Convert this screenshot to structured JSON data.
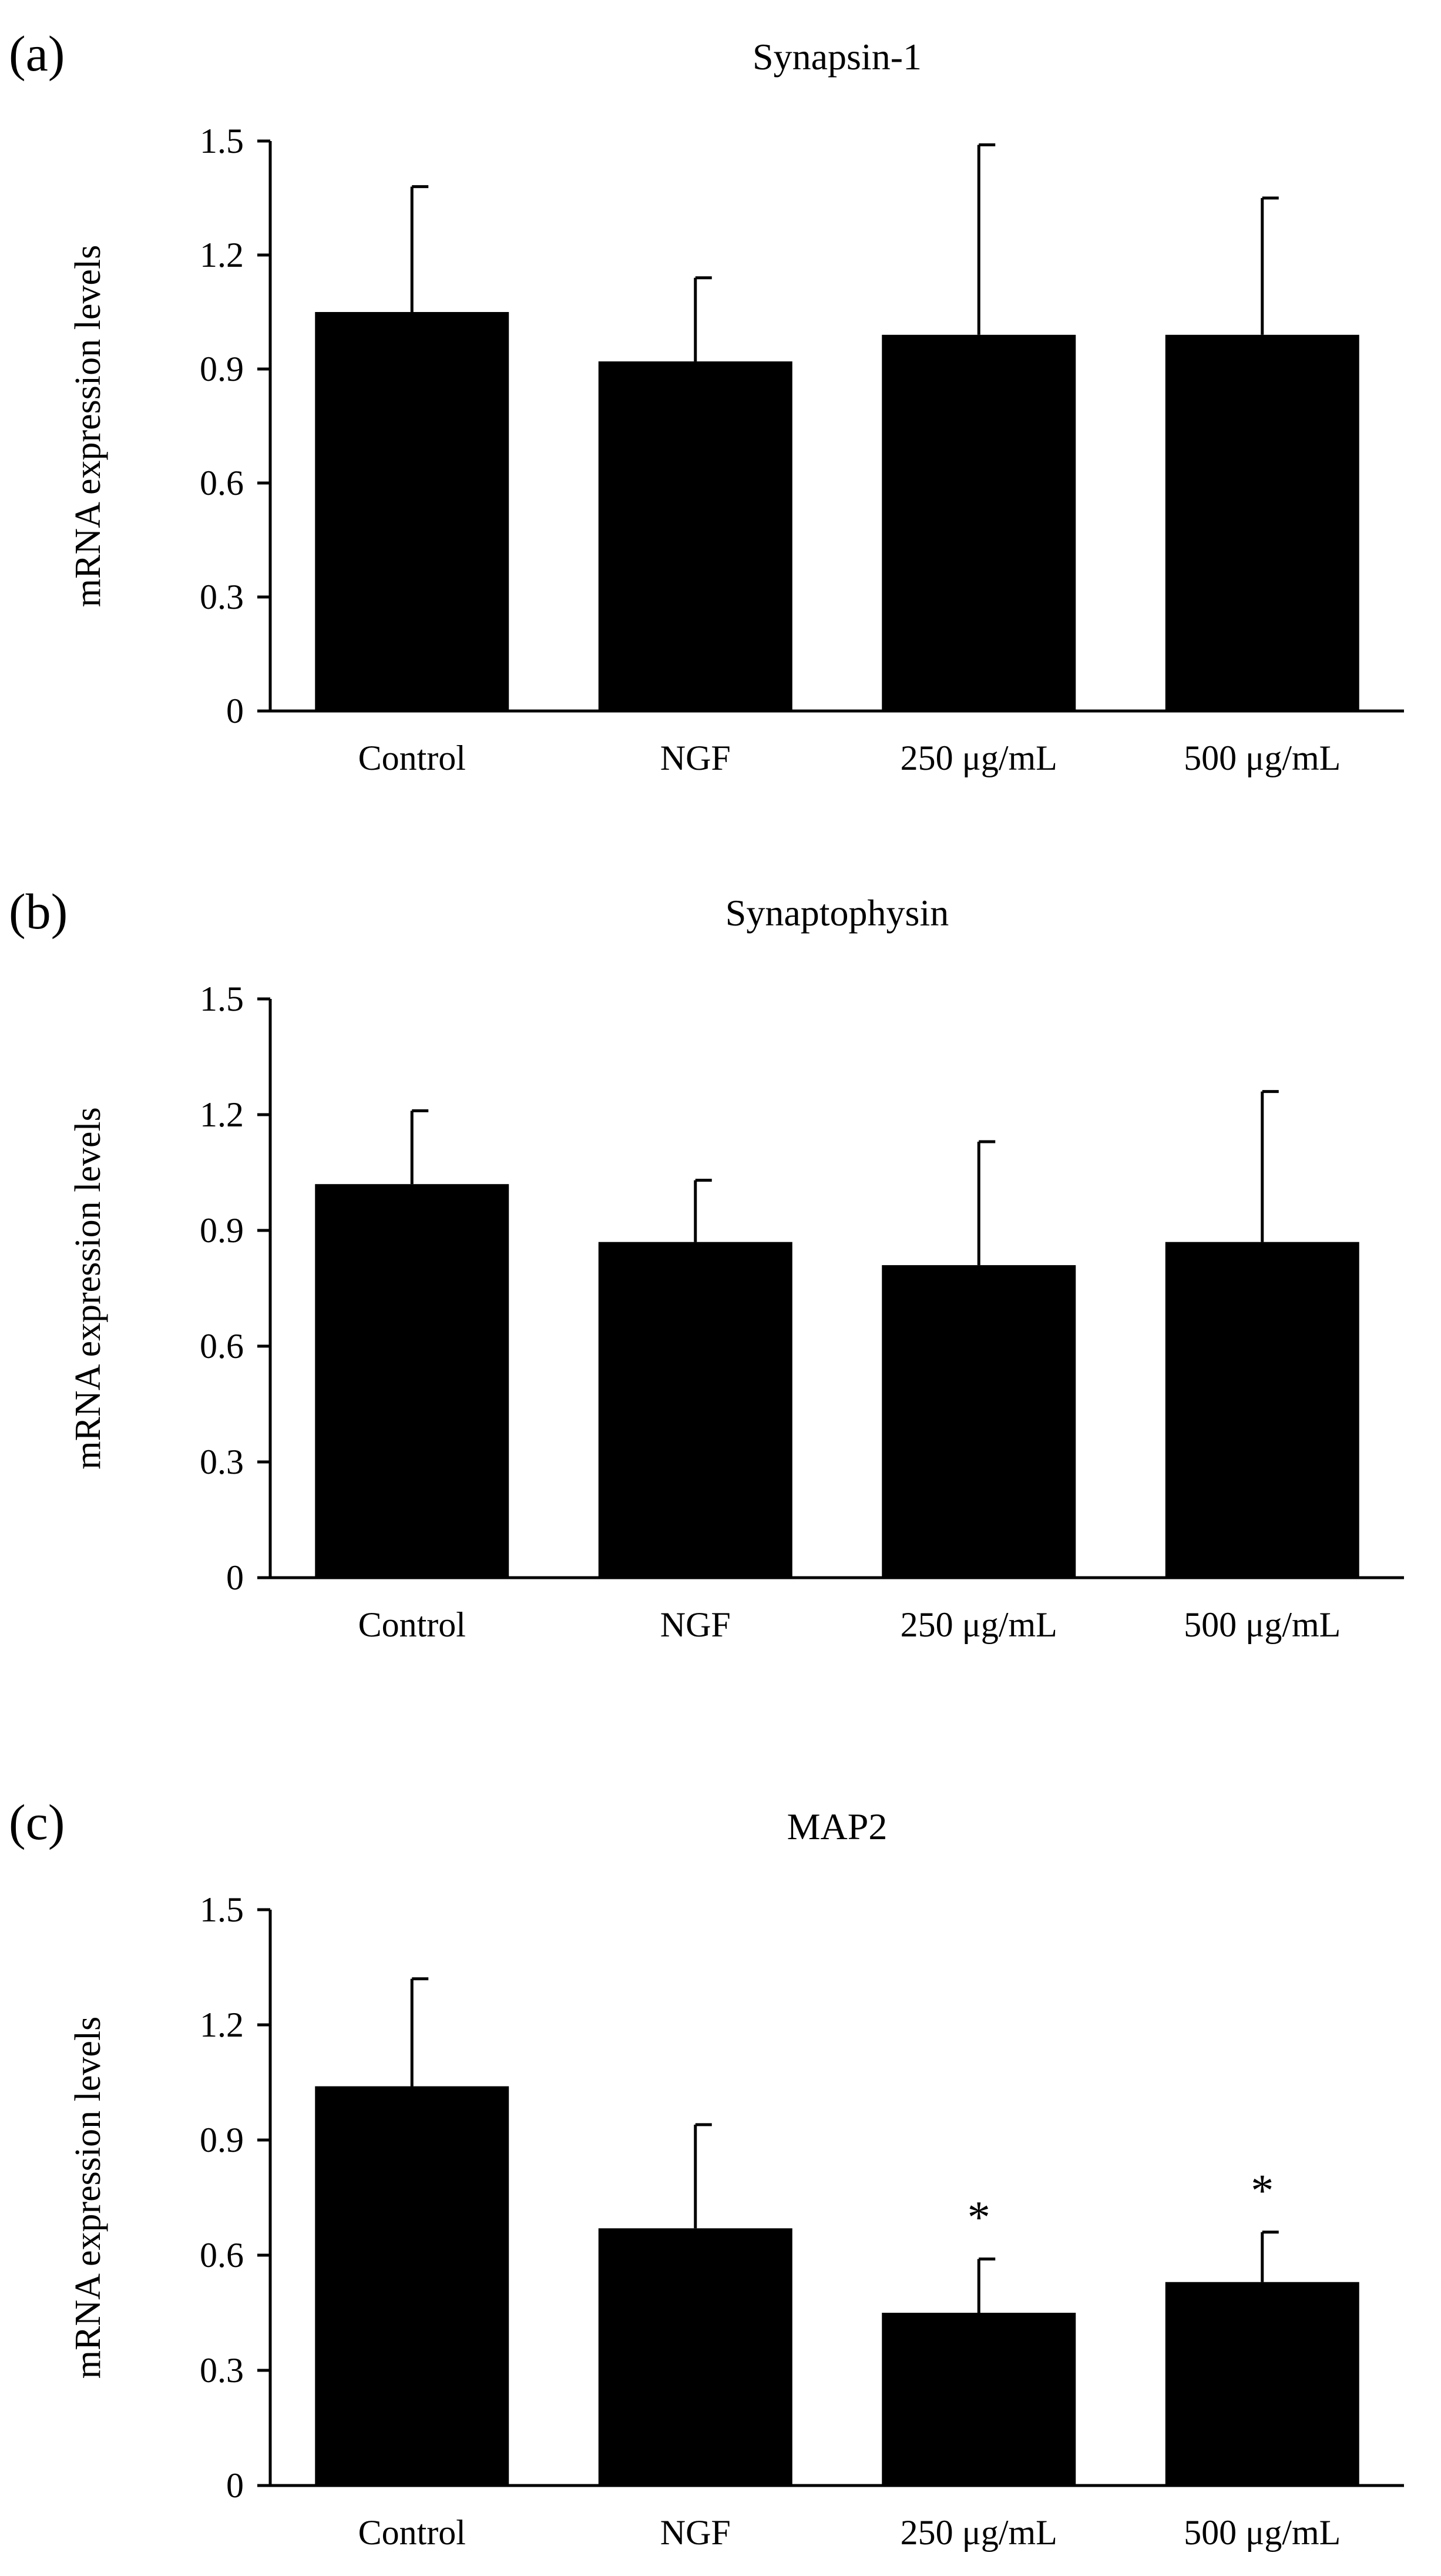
{
  "figure": {
    "colors": {
      "bar": "#000000",
      "axis": "#000000",
      "background": "#ffffff"
    }
  },
  "chart_data": [
    {
      "type": "bar",
      "panel_label": "(a)",
      "title": "Synapsin-1",
      "xlabel": "",
      "ylabel": "mRNA expression levels",
      "ylim": [
        0,
        1.5
      ],
      "yticks": [
        "0",
        "0.3",
        "0.6",
        "0.9",
        "1.2",
        "1.5"
      ],
      "categories": [
        "Control",
        "NGF",
        "250 μg/mL",
        "500 μg/mL"
      ],
      "values": [
        1.05,
        0.92,
        0.99,
        0.99
      ],
      "errors": [
        0.33,
        0.22,
        0.5,
        0.36
      ],
      "significance": [
        "",
        "",
        "",
        ""
      ]
    },
    {
      "type": "bar",
      "panel_label": "(b)",
      "title": "Synaptophysin",
      "xlabel": "",
      "ylabel": "mRNA expression levels",
      "ylim": [
        0,
        1.5
      ],
      "yticks": [
        "0",
        "0.3",
        "0.6",
        "0.9",
        "1.2",
        "1.5"
      ],
      "categories": [
        "Control",
        "NGF",
        "250 μg/mL",
        "500 μg/mL"
      ],
      "values": [
        1.02,
        0.87,
        0.81,
        0.87
      ],
      "errors": [
        0.19,
        0.16,
        0.32,
        0.39
      ],
      "significance": [
        "",
        "",
        "",
        ""
      ]
    },
    {
      "type": "bar",
      "panel_label": "(c)",
      "title": "MAP2",
      "xlabel": "",
      "ylabel": "mRNA expression levels",
      "ylim": [
        0,
        1.5
      ],
      "yticks": [
        "0",
        "0.3",
        "0.6",
        "0.9",
        "1.2",
        "1.5"
      ],
      "categories": [
        "Control",
        "NGF",
        "250 μg/mL",
        "500 μg/mL"
      ],
      "values": [
        1.04,
        0.67,
        0.45,
        0.53
      ],
      "errors": [
        0.28,
        0.27,
        0.14,
        0.13
      ],
      "significance": [
        "",
        "",
        "*",
        "*"
      ]
    }
  ]
}
